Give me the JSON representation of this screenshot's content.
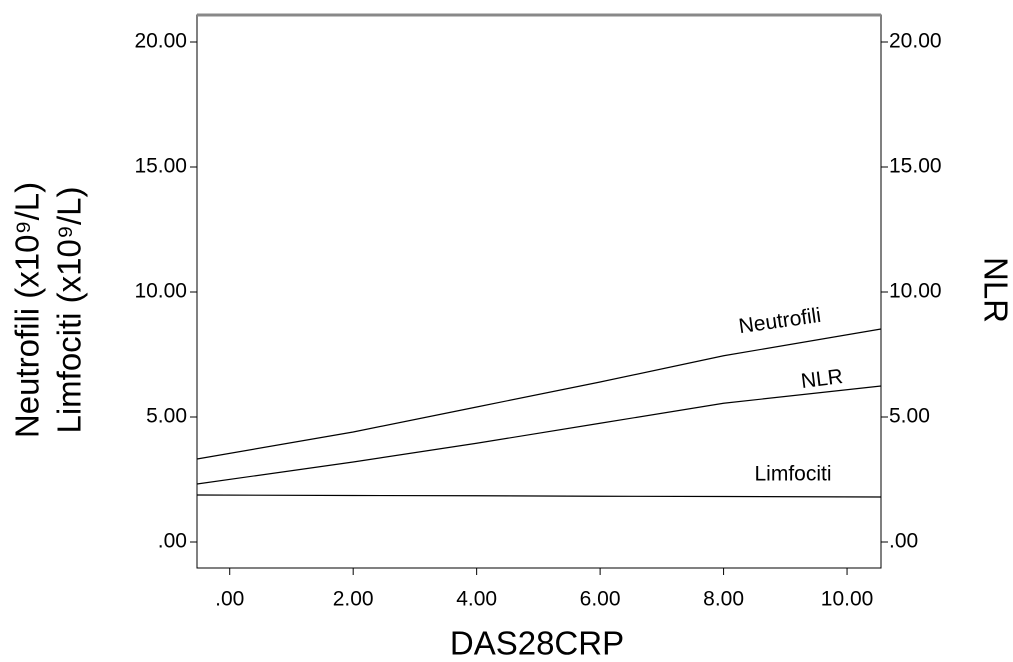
{
  "chart_data": {
    "type": "line",
    "x_label": "DAS28CRP",
    "y_label": [
      "Neutrofili (x10⁹/L)",
      "Limfociti (x10⁹/L)"
    ],
    "y2_label": "NLR",
    "x": [
      -0.53,
      2,
      4,
      6,
      8,
      10.55
    ],
    "series": [
      {
        "name": "Neutrofili",
        "color": "#000000",
        "values": [
          3.32,
          4.4,
          5.4,
          6.4,
          7.45,
          8.52
        ]
      },
      {
        "name": "NLR",
        "color": "#000000",
        "axis": "y2",
        "values": [
          2.32,
          3.2,
          3.95,
          4.75,
          5.55,
          6.24
        ]
      },
      {
        "name": "Limfociti",
        "color": "#000000",
        "values": [
          1.88,
          1.86,
          1.85,
          1.83,
          1.82,
          1.8
        ]
      }
    ],
    "xlim": [
      -0.53,
      10.55
    ],
    "xticks": [
      {
        "value": 0,
        "label": ".00"
      },
      {
        "value": 2,
        "label": "2.00"
      },
      {
        "value": 4,
        "label": "4.00"
      },
      {
        "value": 6,
        "label": "6.00"
      },
      {
        "value": 8,
        "label": "8.00"
      },
      {
        "value": 10,
        "label": "10.00"
      }
    ],
    "ylim": [
      -1.04,
      21.08
    ],
    "yticks": [
      {
        "value": 0,
        "label": ".00"
      },
      {
        "value": 5,
        "label": "5.00"
      },
      {
        "value": 10,
        "label": "10.00"
      },
      {
        "value": 15,
        "label": "15.00"
      },
      {
        "value": 20,
        "label": "20.00"
      }
    ],
    "y2lim": [
      -1.04,
      21.08
    ],
    "y2ticks": [
      {
        "value": 0,
        "label": ".00"
      },
      {
        "value": 5,
        "label": "5.00"
      },
      {
        "value": 10,
        "label": "10.00"
      },
      {
        "value": 15,
        "label": "15.00"
      },
      {
        "value": 20,
        "label": "20.00"
      }
    ]
  }
}
